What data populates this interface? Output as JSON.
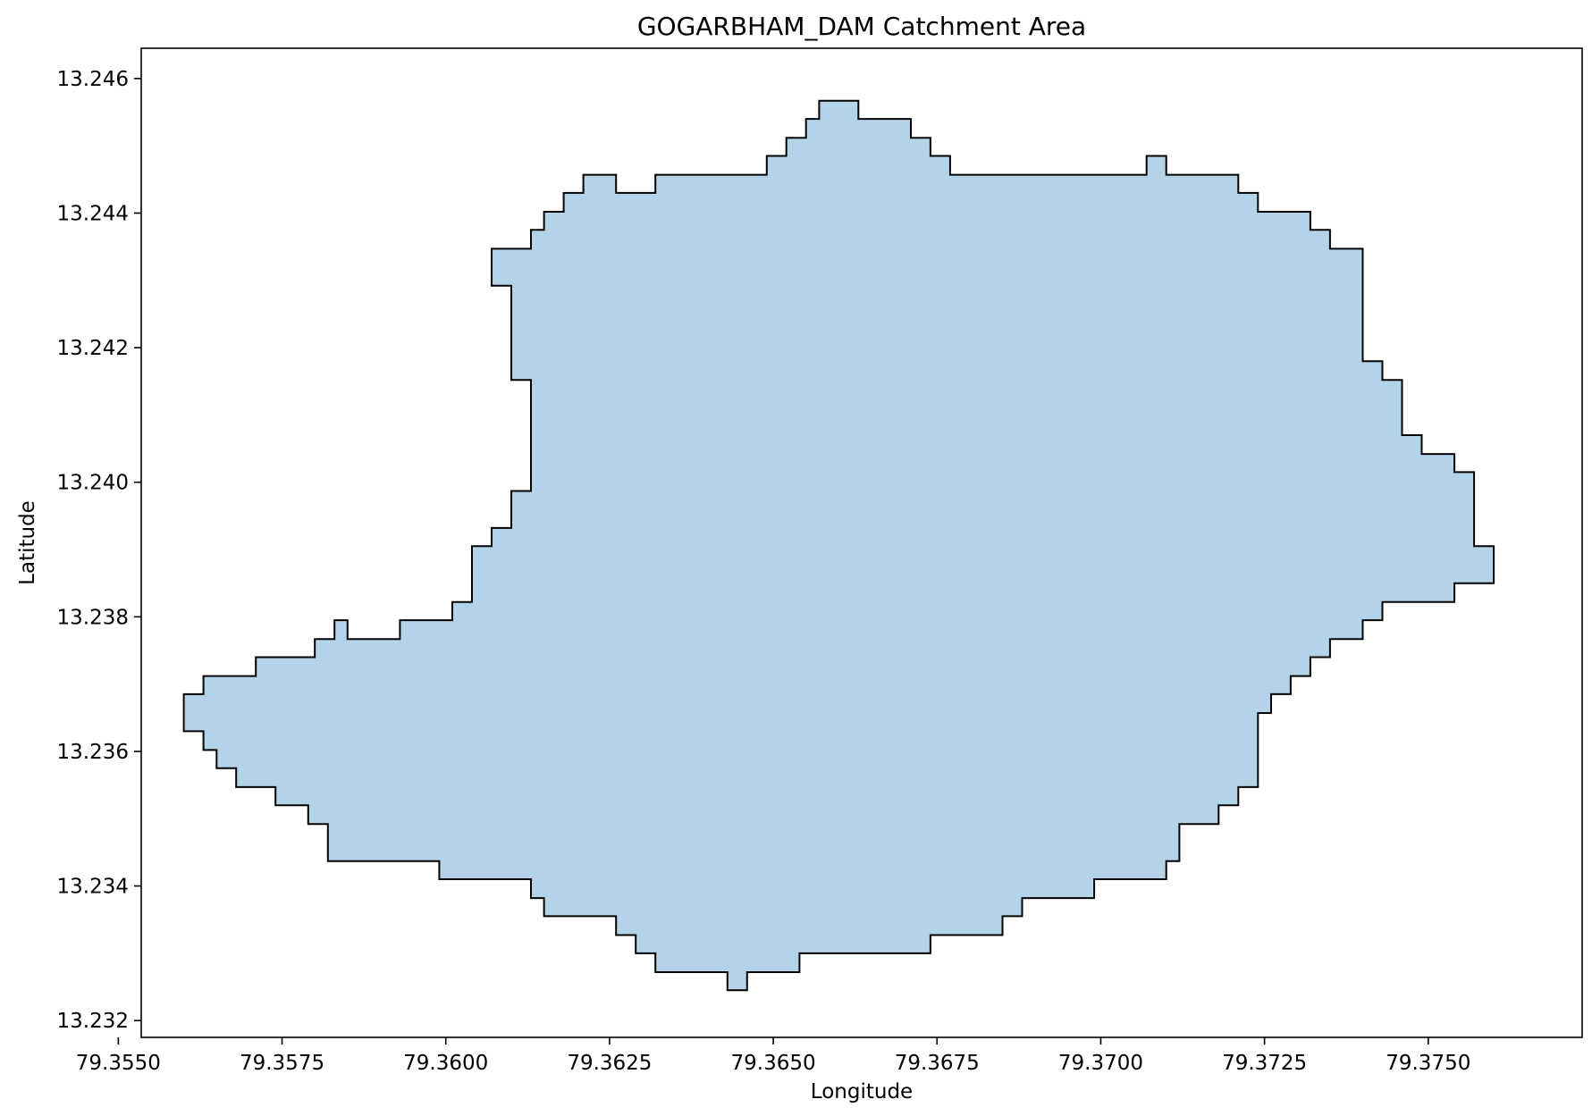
{
  "chart_data": {
    "type": "area",
    "title": "GOGARBHAM_DAM Catchment Area",
    "xlabel": "Longitude",
    "ylabel": "Latitude",
    "xlim": [
      79.35535,
      79.37735
    ],
    "ylim": [
      13.23175,
      13.24645
    ],
    "xticks": [
      {
        "value": 79.355,
        "label": "79.3550"
      },
      {
        "value": 79.3575,
        "label": "79.3575"
      },
      {
        "value": 79.36,
        "label": "79.3600"
      },
      {
        "value": 79.3625,
        "label": "79.3625"
      },
      {
        "value": 79.365,
        "label": "79.3650"
      },
      {
        "value": 79.3675,
        "label": "79.3675"
      },
      {
        "value": 79.37,
        "label": "79.3700"
      },
      {
        "value": 79.3725,
        "label": "79.3725"
      },
      {
        "value": 79.375,
        "label": "79.3750"
      }
    ],
    "yticks": [
      {
        "value": 13.232,
        "label": "13.232"
      },
      {
        "value": 13.234,
        "label": "13.234"
      },
      {
        "value": 13.236,
        "label": "13.236"
      },
      {
        "value": 13.238,
        "label": "13.238"
      },
      {
        "value": 13.24,
        "label": "13.240"
      },
      {
        "value": 13.242,
        "label": "13.242"
      },
      {
        "value": 13.244,
        "label": "13.244"
      },
      {
        "value": 13.246,
        "label": "13.246"
      }
    ],
    "fill_color": "#b3d4e8",
    "edge_color": "#000000",
    "grid": false,
    "polygon": [
      [
        79.356,
        13.23685
      ],
      [
        79.3563,
        13.23685
      ],
      [
        79.3563,
        13.23712
      ],
      [
        79.3571,
        13.23712
      ],
      [
        79.3571,
        13.2374
      ],
      [
        79.358,
        13.2374
      ],
      [
        79.358,
        13.23767
      ],
      [
        79.3583,
        13.23767
      ],
      [
        79.3583,
        13.23795
      ],
      [
        79.3585,
        13.23795
      ],
      [
        79.3585,
        13.23767
      ],
      [
        79.3593,
        13.23767
      ],
      [
        79.3593,
        13.23795
      ],
      [
        79.3601,
        13.23795
      ],
      [
        79.3601,
        13.23822
      ],
      [
        79.3604,
        13.23822
      ],
      [
        79.3604,
        13.23905
      ],
      [
        79.3607,
        13.23905
      ],
      [
        79.3607,
        13.23932
      ],
      [
        79.361,
        13.23932
      ],
      [
        79.361,
        13.23987
      ],
      [
        79.3613,
        13.23987
      ],
      [
        79.3613,
        13.24152
      ],
      [
        79.361,
        13.24152
      ],
      [
        79.361,
        13.24292
      ],
      [
        79.3607,
        13.24292
      ],
      [
        79.3607,
        13.24347
      ],
      [
        79.3613,
        13.24347
      ],
      [
        79.3613,
        13.24375
      ],
      [
        79.3615,
        13.24375
      ],
      [
        79.3615,
        13.24402
      ],
      [
        79.3618,
        13.24402
      ],
      [
        79.3618,
        13.2443
      ],
      [
        79.3621,
        13.2443
      ],
      [
        79.3621,
        13.24457
      ],
      [
        79.3626,
        13.24457
      ],
      [
        79.3626,
        13.2443
      ],
      [
        79.3632,
        13.2443
      ],
      [
        79.3632,
        13.24457
      ],
      [
        79.3649,
        13.24457
      ],
      [
        79.3649,
        13.24485
      ],
      [
        79.3652,
        13.24485
      ],
      [
        79.3652,
        13.24512
      ],
      [
        79.3655,
        13.24512
      ],
      [
        79.3655,
        13.2454
      ],
      [
        79.3657,
        13.2454
      ],
      [
        79.3657,
        13.24567
      ],
      [
        79.3663,
        13.24567
      ],
      [
        79.3663,
        13.2454
      ],
      [
        79.3671,
        13.2454
      ],
      [
        79.3671,
        13.24512
      ],
      [
        79.3674,
        13.24512
      ],
      [
        79.3674,
        13.24485
      ],
      [
        79.3677,
        13.24485
      ],
      [
        79.3677,
        13.24457
      ],
      [
        79.3707,
        13.24457
      ],
      [
        79.3707,
        13.24485
      ],
      [
        79.371,
        13.24485
      ],
      [
        79.371,
        13.24457
      ],
      [
        79.3721,
        13.24457
      ],
      [
        79.3721,
        13.2443
      ],
      [
        79.3724,
        13.2443
      ],
      [
        79.3724,
        13.24402
      ],
      [
        79.3732,
        13.24402
      ],
      [
        79.3732,
        13.24375
      ],
      [
        79.3735,
        13.24375
      ],
      [
        79.3735,
        13.24347
      ],
      [
        79.374,
        13.24347
      ],
      [
        79.374,
        13.2418
      ],
      [
        79.3743,
        13.2418
      ],
      [
        79.3743,
        13.24152
      ],
      [
        79.3746,
        13.24152
      ],
      [
        79.3746,
        13.2407
      ],
      [
        79.3749,
        13.2407
      ],
      [
        79.3749,
        13.24042
      ],
      [
        79.3754,
        13.24042
      ],
      [
        79.3754,
        13.24015
      ],
      [
        79.3757,
        13.24015
      ],
      [
        79.3757,
        13.23905
      ],
      [
        79.376,
        13.23905
      ],
      [
        79.376,
        13.2385
      ],
      [
        79.3754,
        13.2385
      ],
      [
        79.3754,
        13.23822
      ],
      [
        79.3743,
        13.23822
      ],
      [
        79.3743,
        13.23795
      ],
      [
        79.374,
        13.23795
      ],
      [
        79.374,
        13.23767
      ],
      [
        79.3735,
        13.23767
      ],
      [
        79.3735,
        13.2374
      ],
      [
        79.3732,
        13.2374
      ],
      [
        79.3732,
        13.23712
      ],
      [
        79.3729,
        13.23712
      ],
      [
        79.3729,
        13.23685
      ],
      [
        79.3726,
        13.23685
      ],
      [
        79.3726,
        13.23657
      ],
      [
        79.3724,
        13.23657
      ],
      [
        79.3724,
        13.23547
      ],
      [
        79.3721,
        13.23547
      ],
      [
        79.3721,
        13.2352
      ],
      [
        79.3718,
        13.2352
      ],
      [
        79.3718,
        13.23492
      ],
      [
        79.3712,
        13.23492
      ],
      [
        79.3712,
        13.23437
      ],
      [
        79.371,
        13.23437
      ],
      [
        79.371,
        13.2341
      ],
      [
        79.3699,
        13.2341
      ],
      [
        79.3699,
        13.23382
      ],
      [
        79.3688,
        13.23382
      ],
      [
        79.3688,
        13.23355
      ],
      [
        79.3685,
        13.23355
      ],
      [
        79.3685,
        13.23327
      ],
      [
        79.3674,
        13.23327
      ],
      [
        79.3674,
        13.233
      ],
      [
        79.3654,
        13.233
      ],
      [
        79.3654,
        13.23272
      ],
      [
        79.3646,
        13.23272
      ],
      [
        79.3646,
        13.23245
      ],
      [
        79.3643,
        13.23245
      ],
      [
        79.3643,
        13.23272
      ],
      [
        79.3632,
        13.23272
      ],
      [
        79.3632,
        13.233
      ],
      [
        79.3629,
        13.233
      ],
      [
        79.3629,
        13.23327
      ],
      [
        79.3626,
        13.23327
      ],
      [
        79.3626,
        13.23355
      ],
      [
        79.3615,
        13.23355
      ],
      [
        79.3615,
        13.23382
      ],
      [
        79.3613,
        13.23382
      ],
      [
        79.3613,
        13.2341
      ],
      [
        79.3599,
        13.2341
      ],
      [
        79.3599,
        13.23437
      ],
      [
        79.3582,
        13.23437
      ],
      [
        79.3582,
        13.23492
      ],
      [
        79.3579,
        13.23492
      ],
      [
        79.3579,
        13.2352
      ],
      [
        79.3574,
        13.2352
      ],
      [
        79.3574,
        13.23547
      ],
      [
        79.3568,
        13.23547
      ],
      [
        79.3568,
        13.23575
      ],
      [
        79.3565,
        13.23575
      ],
      [
        79.3565,
        13.23602
      ],
      [
        79.3563,
        13.23602
      ],
      [
        79.3563,
        13.2363
      ],
      [
        79.356,
        13.2363
      ]
    ]
  }
}
